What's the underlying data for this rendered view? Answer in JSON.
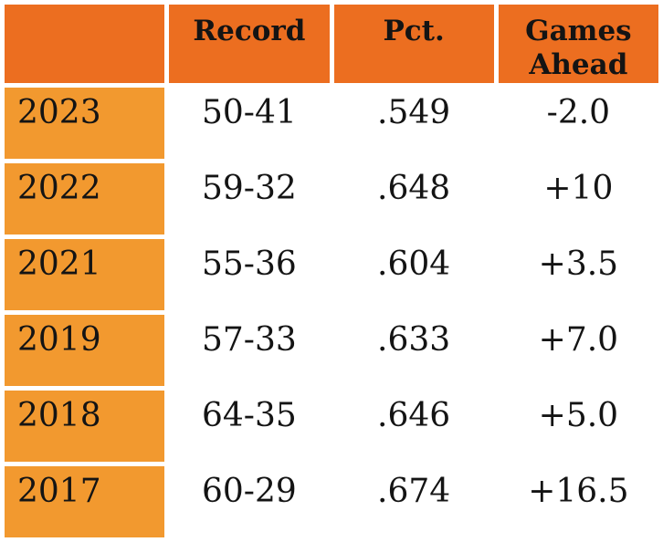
{
  "chart_data": {
    "type": "table",
    "columns": [
      "",
      "Record",
      "Pct.",
      "Games Ahead"
    ],
    "rows": [
      [
        "2023",
        "50-41",
        ".549",
        "-2.0"
      ],
      [
        "2022",
        "59-32",
        ".648",
        "+10"
      ],
      [
        "2021",
        "55-36",
        ".604",
        "+3.5"
      ],
      [
        "2019",
        "57-33",
        ".633",
        "+7.0"
      ],
      [
        "2018",
        "64-35",
        ".646",
        "+5.0"
      ],
      [
        "2017",
        "60-29",
        ".674",
        "+16.5"
      ]
    ],
    "layout_hints": {
      "first_column_role": "year labels",
      "grid": "white gaps between cells"
    }
  },
  "colors": {
    "header_bg": "#ec6e20",
    "row_label_bg": "#f2992f",
    "text": "#141414",
    "background": "#ffffff"
  }
}
